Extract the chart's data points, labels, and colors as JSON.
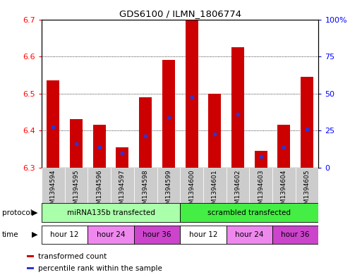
{
  "title": "GDS6100 / ILMN_1806774",
  "samples": [
    "GSM1394594",
    "GSM1394595",
    "GSM1394596",
    "GSM1394597",
    "GSM1394598",
    "GSM1394599",
    "GSM1394600",
    "GSM1394601",
    "GSM1394602",
    "GSM1394603",
    "GSM1394604",
    "GSM1394605"
  ],
  "bar_bottoms": [
    6.3,
    6.3,
    6.3,
    6.3,
    6.3,
    6.3,
    6.3,
    6.3,
    6.3,
    6.3,
    6.3,
    6.3
  ],
  "bar_tops": [
    6.535,
    6.43,
    6.415,
    6.355,
    6.49,
    6.59,
    6.7,
    6.5,
    6.625,
    6.345,
    6.415,
    6.545
  ],
  "blue_markers": [
    6.41,
    6.365,
    6.355,
    6.34,
    6.385,
    6.435,
    6.49,
    6.39,
    6.445,
    6.33,
    6.355,
    6.405
  ],
  "ylim": [
    6.3,
    6.7
  ],
  "yticks_left": [
    6.3,
    6.4,
    6.5,
    6.6,
    6.7
  ],
  "yticks_right": [
    0,
    25,
    50,
    75,
    100
  ],
  "ytick_right_labels": [
    "0",
    "25",
    "50",
    "75",
    "100%"
  ],
  "bar_color": "#cc0000",
  "blue_color": "#3333cc",
  "protocol_groups": [
    {
      "label": "miRNA135b transfected",
      "start": 0,
      "end": 6,
      "color": "#aaffaa"
    },
    {
      "label": "scrambled transfected",
      "start": 6,
      "end": 12,
      "color": "#44ee44"
    }
  ],
  "time_groups": [
    {
      "label": "hour 12",
      "start": 0,
      "end": 2,
      "color": "#ffffff"
    },
    {
      "label": "hour 24",
      "start": 2,
      "end": 4,
      "color": "#ee88ee"
    },
    {
      "label": "hour 36",
      "start": 4,
      "end": 6,
      "color": "#cc44cc"
    },
    {
      "label": "hour 12",
      "start": 6,
      "end": 8,
      "color": "#ffffff"
    },
    {
      "label": "hour 24",
      "start": 8,
      "end": 10,
      "color": "#ee88ee"
    },
    {
      "label": "hour 36",
      "start": 10,
      "end": 12,
      "color": "#cc44cc"
    }
  ],
  "sample_bg_color": "#cccccc",
  "legend_items": [
    {
      "color": "#cc0000",
      "label": "transformed count"
    },
    {
      "color": "#3333cc",
      "label": "percentile rank within the sample"
    }
  ],
  "fig_width": 5.13,
  "fig_height": 3.93,
  "dpi": 100
}
